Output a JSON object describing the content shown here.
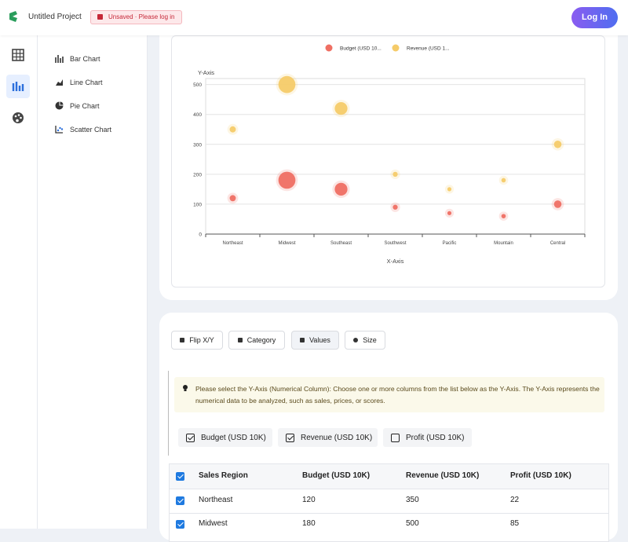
{
  "header": {
    "project": "Untitled Project",
    "status": "Unsaved · Please log in",
    "login": "Log In"
  },
  "sidebar": {
    "items": [
      "Bar Chart",
      "Line Chart",
      "Pie Chart",
      "Scatter Chart"
    ]
  },
  "chart_data": {
    "type": "bubble",
    "x_label": "X-Axis",
    "y_label": "Y-Axis",
    "categories": [
      "Northeast",
      "Midwest",
      "Southeast",
      "Southwest",
      "Pacific",
      "Mountain",
      "Central"
    ],
    "series": [
      {
        "name": "Budget (USD 10...",
        "color": "#ef6f63",
        "values": [
          120,
          180,
          150,
          90,
          70,
          60,
          100
        ]
      },
      {
        "name": "Revenue (USD 1...",
        "color": "#f5cb69",
        "values": [
          350,
          500,
          420,
          200,
          150,
          180,
          300
        ]
      }
    ],
    "sizes": [
      22,
      85,
      60,
      15,
      10,
      12,
      30
    ],
    "ylim": [
      0,
      520
    ],
    "yticks": [
      0,
      100,
      200,
      300,
      400,
      500
    ],
    "grid": true
  },
  "toolbar": {
    "buttons": [
      "Flip X/Y",
      "Category",
      "Values",
      "Size"
    ],
    "active": 2
  },
  "info": "Please select the Y-Axis (Numerical Column): Choose one or more columns from the list below as the Y-Axis. The Y-Axis represents the numerical data to be analyzed, such as sales, prices, or scores.",
  "selectors": [
    {
      "label": "Budget (USD 10K)",
      "checked": true
    },
    {
      "label": "Revenue (USD 10K)",
      "checked": true
    },
    {
      "label": "Profit (USD 10K)",
      "checked": false
    }
  ],
  "table": {
    "header": [
      "Sales Region",
      "Budget (USD 10K)",
      "Revenue (USD 10K)",
      "Profit (USD 10K)"
    ],
    "rows": [
      [
        "Northeast",
        "120",
        "350",
        "22"
      ],
      [
        "Midwest",
        "180",
        "500",
        "85"
      ]
    ]
  }
}
